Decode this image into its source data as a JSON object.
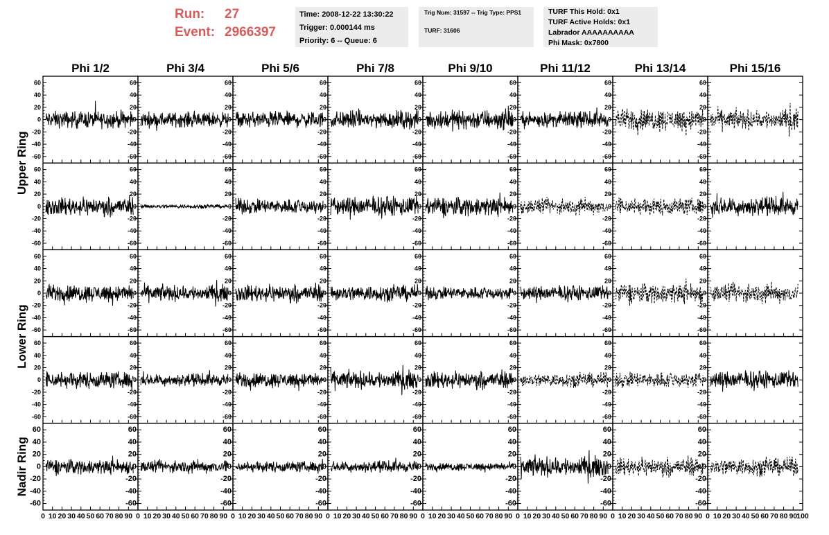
{
  "header": {
    "run_label": "Run:",
    "run_value": "27",
    "event_label": "Event:",
    "event_value": "2966397",
    "time_lines": [
      "Time: 2008-12-22 13:30:22",
      "Trigger: 0.000144 ms",
      "Priority: 6 -- Queue: 6"
    ],
    "trig_lines": [
      "Trig Num: 31597 -- Trig Type: PPS1",
      "TURF: 31606"
    ],
    "turf_lines": [
      "TURF This Hold: 0x1",
      "TURF Active Holds: 0x1",
      "Labrador AAAAAAAAAA",
      "Phi Mask: 0x7800"
    ],
    "accent_color": "#d75b5b",
    "info_bg_color": "#ececec"
  },
  "chart_data": {
    "type": "line",
    "description_free": true,
    "column_labels": [
      "Phi 1/2",
      "Phi 3/4",
      "Phi 5/6",
      "Phi 7/8",
      "Phi 9/10",
      "Phi 11/12",
      "Phi 13/14",
      "Phi 15/16"
    ],
    "row_labels": [
      "Upper Ring",
      "Lower Ring",
      "Nadir Ring"
    ],
    "panel_rows": 5,
    "panel_cols": 8,
    "row_label_spans": [
      [
        0,
        1
      ],
      [
        2,
        3
      ],
      [
        4,
        4
      ]
    ],
    "xlim": [
      0,
      100
    ],
    "ylim": [
      -65,
      65
    ],
    "x_ticks": [
      0,
      10,
      20,
      30,
      40,
      50,
      60,
      70,
      80,
      90,
      100
    ],
    "x_tick_labels": [
      "0",
      "10",
      "20",
      "30",
      "40",
      "50",
      "60",
      "70",
      "80",
      "90",
      "100"
    ],
    "y_ticks": [
      -60,
      -40,
      -20,
      0,
      20,
      40,
      60
    ],
    "y_tick_labels": [
      "-60",
      "-40",
      "-20",
      "0",
      "20",
      "40",
      "60"
    ],
    "n_samples": 260,
    "trace_amplitude_envelope": [
      [
        17,
        15,
        16,
        18,
        20,
        15,
        22,
        20
      ],
      [
        18,
        4,
        15,
        20,
        19,
        15,
        17,
        18
      ],
      [
        17,
        16,
        17,
        16,
        13,
        15,
        20,
        18
      ],
      [
        17,
        12,
        15,
        18,
        17,
        14,
        16,
        18
      ],
      [
        15,
        12,
        11,
        11,
        8,
        20,
        18,
        18
      ]
    ],
    "trace_dashed": [
      [
        false,
        false,
        false,
        false,
        false,
        false,
        true,
        true
      ],
      [
        false,
        false,
        false,
        false,
        false,
        true,
        true,
        false
      ],
      [
        false,
        false,
        false,
        false,
        false,
        false,
        true,
        true
      ],
      [
        false,
        false,
        false,
        false,
        false,
        true,
        true,
        false
      ],
      [
        false,
        false,
        false,
        false,
        false,
        false,
        true,
        true
      ]
    ],
    "line_color": "#000000"
  }
}
